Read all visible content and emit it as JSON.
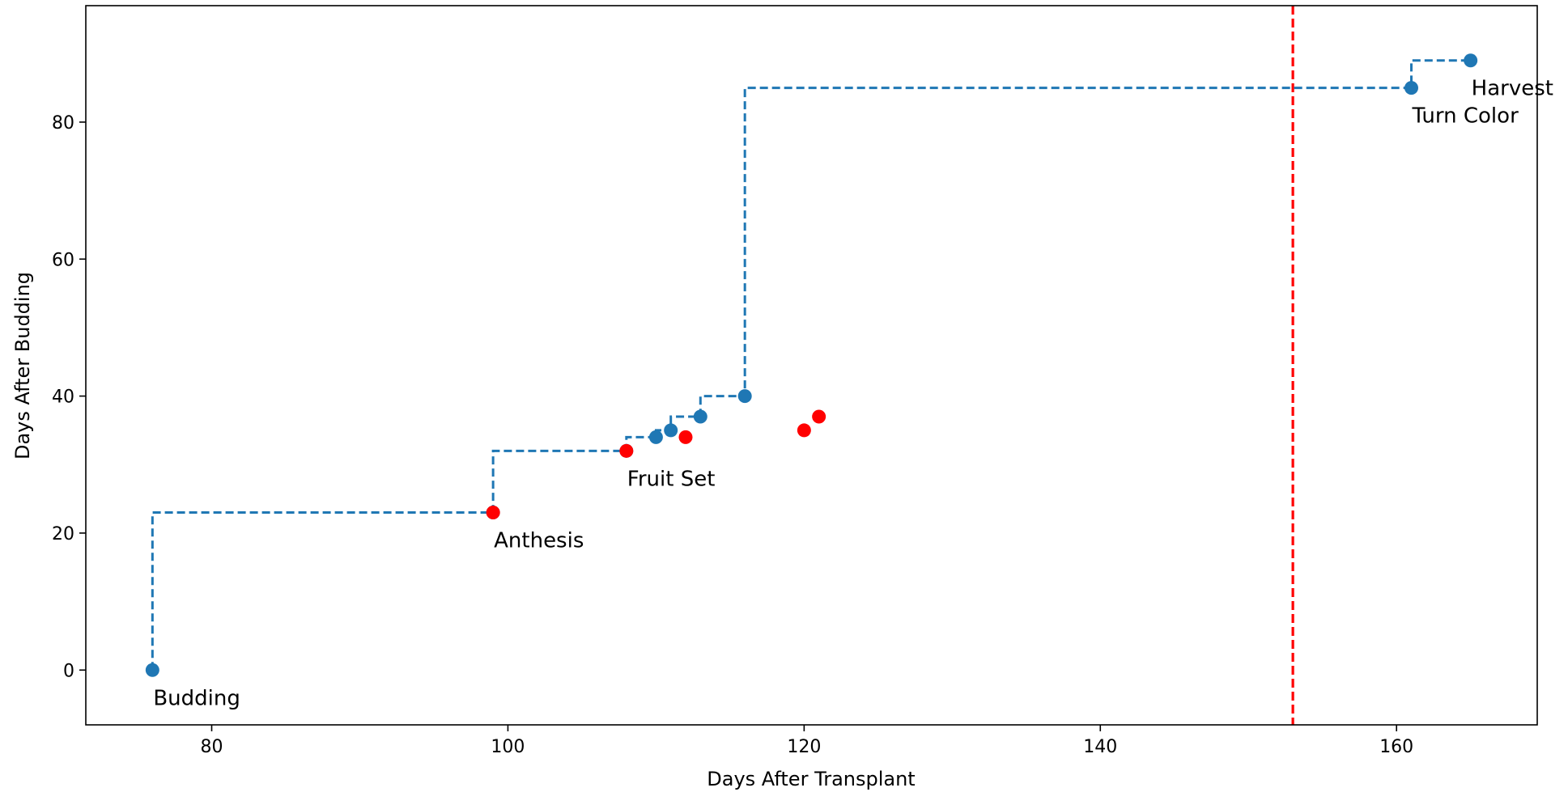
{
  "chart_data": {
    "type": "scatter",
    "title": "",
    "xlabel": "Days After Transplant",
    "ylabel": "Days After Budding",
    "xlim": [
      71.5,
      169.5
    ],
    "ylim": [
      -8,
      97
    ],
    "xticks": [
      80,
      100,
      120,
      140,
      160
    ],
    "yticks": [
      0,
      20,
      40,
      60,
      80
    ],
    "grid": false,
    "legend": "none",
    "series": [
      {
        "style": "step-post dashed line with markers",
        "color": "#1f77b4",
        "points": [
          {
            "x": 76,
            "y": 0
          },
          {
            "x": 99,
            "y": 23
          },
          {
            "x": 108,
            "y": 32
          },
          {
            "x": 110,
            "y": 34
          },
          {
            "x": 111,
            "y": 35
          },
          {
            "x": 113,
            "y": 37
          },
          {
            "x": 116,
            "y": 40
          },
          {
            "x": 161,
            "y": 85
          },
          {
            "x": 165,
            "y": 89
          }
        ]
      },
      {
        "style": "markers",
        "color": "#ff0000",
        "points": [
          {
            "x": 99,
            "y": 23
          },
          {
            "x": 108,
            "y": 32
          },
          {
            "x": 112,
            "y": 34
          },
          {
            "x": 120,
            "y": 35
          },
          {
            "x": 121,
            "y": 37
          }
        ]
      }
    ],
    "annotations": [
      {
        "text": "Budding",
        "x": 76,
        "y": 0
      },
      {
        "text": "Anthesis",
        "x": 99,
        "y": 23
      },
      {
        "text": "Fruit Set",
        "x": 108,
        "y": 32
      },
      {
        "text": "Turn Color",
        "x": 161,
        "y": 85
      },
      {
        "text": "Harvest",
        "x": 165,
        "y": 89
      }
    ],
    "vlines": [
      {
        "x": 153,
        "color": "#ff0000",
        "style": "dashed"
      }
    ]
  }
}
